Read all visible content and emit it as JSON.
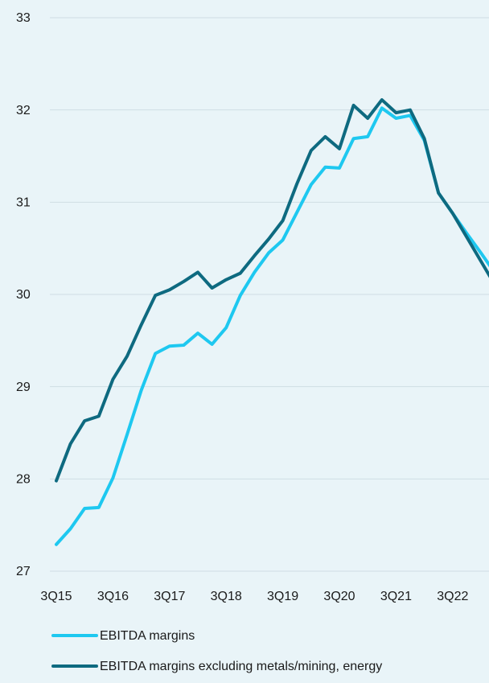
{
  "chart_data": {
    "type": "line",
    "categories": [
      "3Q15",
      null,
      null,
      null,
      "3Q16",
      null,
      null,
      null,
      "3Q17",
      null,
      null,
      null,
      "3Q18",
      null,
      null,
      null,
      "3Q19",
      null,
      null,
      null,
      "3Q20",
      null,
      null,
      null,
      "3Q21",
      null,
      null,
      null,
      "3Q22",
      null,
      null,
      null
    ],
    "series": [
      {
        "name": "EBITDA margins",
        "color": "#1ec8f0",
        "values": [
          27.29,
          27.46,
          27.68,
          27.69,
          28.01,
          28.48,
          28.96,
          29.36,
          29.44,
          29.45,
          29.58,
          29.46,
          29.64,
          29.99,
          30.24,
          30.45,
          30.59,
          30.89,
          31.19,
          31.38,
          31.37,
          31.69,
          31.71,
          32.02,
          31.91,
          31.94,
          31.67,
          31.1,
          30.88,
          30.66,
          30.45,
          30.23
        ]
      },
      {
        "name": "EBITDA margins excluding metals/mining, energy",
        "color": "#0e6a80",
        "values": [
          27.98,
          28.38,
          28.63,
          28.68,
          29.08,
          29.33,
          29.67,
          29.99,
          30.05,
          30.14,
          30.24,
          30.07,
          30.16,
          30.23,
          30.42,
          30.6,
          30.8,
          31.2,
          31.56,
          31.71,
          31.58,
          32.05,
          31.91,
          32.11,
          31.97,
          32.0,
          31.69,
          31.1,
          30.88,
          30.62,
          30.36,
          30.1
        ]
      }
    ],
    "ylim": [
      27,
      33
    ],
    "yticks": [
      27,
      28,
      29,
      30,
      31,
      32,
      33
    ],
    "grid": true
  }
}
